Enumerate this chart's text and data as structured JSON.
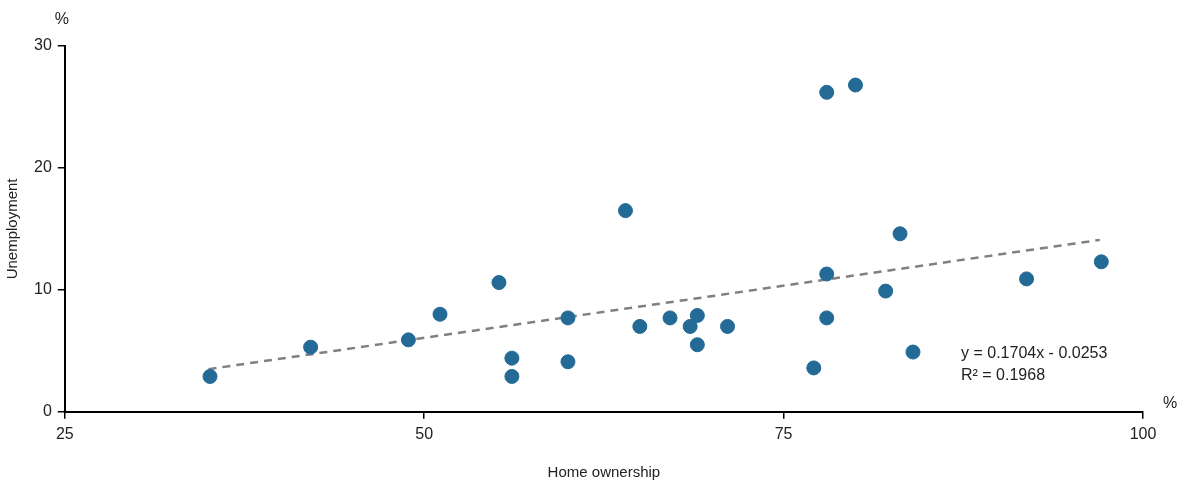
{
  "chart_data": {
    "type": "scatter",
    "xlabel": "Home ownership",
    "ylabel": "Unemployment",
    "annotations": [
      "%",
      "%",
      "y = 0.1704x - 0.0253",
      "R² = 0.1968"
    ],
    "xlim": [
      25,
      100
    ],
    "xticks": [
      25,
      50,
      75,
      100
    ],
    "ylim": [
      0,
      30
    ],
    "yticks": [
      0,
      10,
      20,
      30
    ],
    "marker": "circle",
    "series": [
      {
        "color": "#236a96",
        "x": [
          35.1,
          42.1,
          48.9,
          51.1,
          55.2,
          56.1,
          56.1,
          60.0,
          60.0,
          64.0,
          65.0,
          67.1,
          68.5,
          69.0,
          69.0,
          71.1,
          77.1,
          78.0,
          80.0,
          78.0,
          78.0,
          82.1,
          83.1,
          84.0,
          91.9,
          97.1
        ],
        "values": [
          2.9,
          5.3,
          5.9,
          8.0,
          10.6,
          4.4,
          2.9,
          7.7,
          4.1,
          16.5,
          7.0,
          7.7,
          7.0,
          7.9,
          5.5,
          7.0,
          3.6,
          26.2,
          26.8,
          11.3,
          7.7,
          9.9,
          14.6,
          4.9,
          10.9,
          12.3
        ]
      },
      {
        "type": "line",
        "color": "#808080",
        "line_style": "dashed",
        "marker": "none",
        "x": [
          35,
          97
        ],
        "values": [
          3.5,
          14.1
        ]
      }
    ]
  }
}
